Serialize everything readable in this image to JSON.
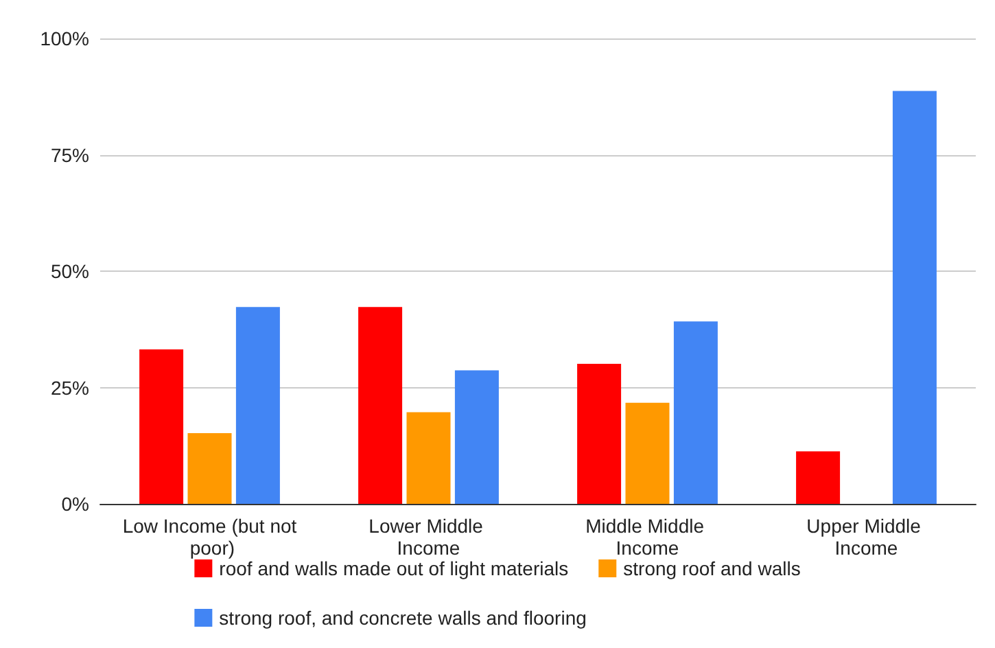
{
  "chart_data": {
    "type": "bar",
    "categories": [
      "Low Income (but not poor)",
      "Lower Middle Income",
      "Middle Middle Income",
      "Upper Middle Income"
    ],
    "series": [
      {
        "name": "roof and walls made out of light materials",
        "color": "#ff0000",
        "values": [
          33.2,
          42.3,
          30.1,
          11.3
        ]
      },
      {
        "name": "strong roof and walls",
        "color": "#ff9900",
        "values": [
          15.2,
          19.7,
          21.7,
          null
        ]
      },
      {
        "name": "strong roof, and concrete walls and flooring",
        "color": "#4285f4",
        "values": [
          42.3,
          28.7,
          39.2,
          88.7
        ]
      }
    ],
    "ylim": [
      0,
      100
    ],
    "yticks": [
      {
        "value": 0,
        "label": "0%"
      },
      {
        "value": 25,
        "label": "25%"
      },
      {
        "value": 50,
        "label": "50%"
      },
      {
        "value": 75,
        "label": "75%"
      },
      {
        "value": 100,
        "label": "100%"
      }
    ],
    "grid": "y",
    "legend": "bottom"
  }
}
